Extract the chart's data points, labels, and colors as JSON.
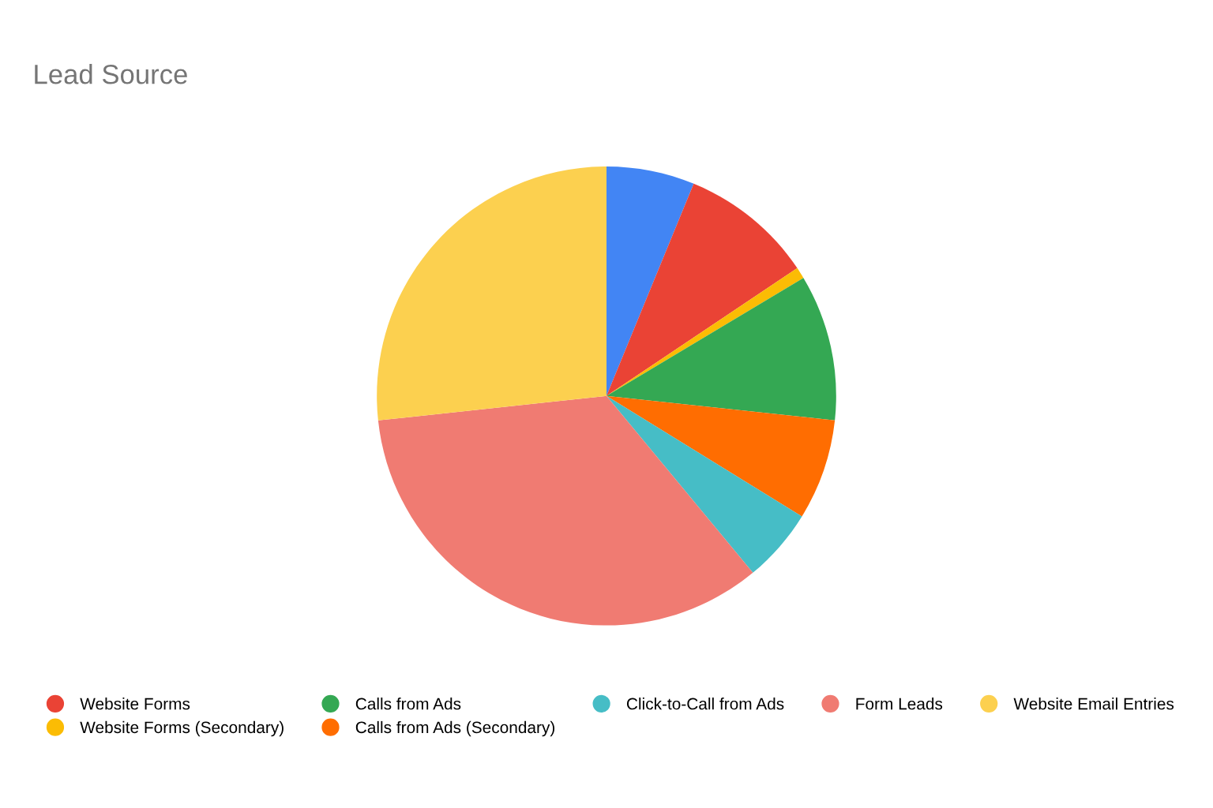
{
  "chart_data": {
    "type": "pie",
    "title": "Lead Source",
    "categories": [
      null,
      "Website Forms",
      "Website Forms (Secondary)",
      "Calls from Ads",
      "Calls from Ads (Secondary)",
      "Click-to-Call from Ads",
      "Form Leads",
      "Website Email Entries"
    ],
    "values": [
      6.2,
      9.4,
      0.8,
      10.3,
      7.1,
      5.2,
      34.3,
      26.7
    ],
    "colors": [
      "#4285f4",
      "#ea4335",
      "#fbbc04",
      "#34a853",
      "#ff6d01",
      "#46bdc6",
      "#f07b72",
      "#fcd04f"
    ],
    "legend": "bottom"
  }
}
